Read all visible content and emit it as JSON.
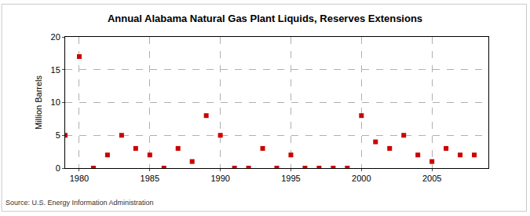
{
  "chart_data": {
    "type": "scatter",
    "title": "Annual Alabama Natural Gas Plant Liquids, Reserves Extensions",
    "y_label": "Million Barrels",
    "source": "Source: U.S. Energy Information Administration",
    "x": [
      1979,
      1980,
      1981,
      1982,
      1983,
      1984,
      1985,
      1986,
      1987,
      1988,
      1989,
      1990,
      1991,
      1992,
      1993,
      1994,
      1995,
      1996,
      1997,
      1998,
      1999,
      2000,
      2001,
      2002,
      2003,
      2004,
      2005,
      2006,
      2007,
      2008
    ],
    "values": [
      5,
      17,
      0,
      2,
      5,
      3,
      2,
      0,
      3,
      1,
      8,
      5,
      0,
      0,
      3,
      0,
      2,
      0,
      0,
      0,
      0,
      8,
      4,
      3,
      5,
      2,
      1,
      3,
      2,
      2
    ],
    "color": "#cc0000",
    "marker": "square",
    "xlim": [
      1979,
      2009
    ],
    "xticks": [
      1980,
      1985,
      1990,
      1995,
      2000,
      2005
    ],
    "ylim": [
      0,
      20
    ],
    "yticks": [
      0,
      5,
      10,
      15,
      20
    ],
    "grid": true
  }
}
